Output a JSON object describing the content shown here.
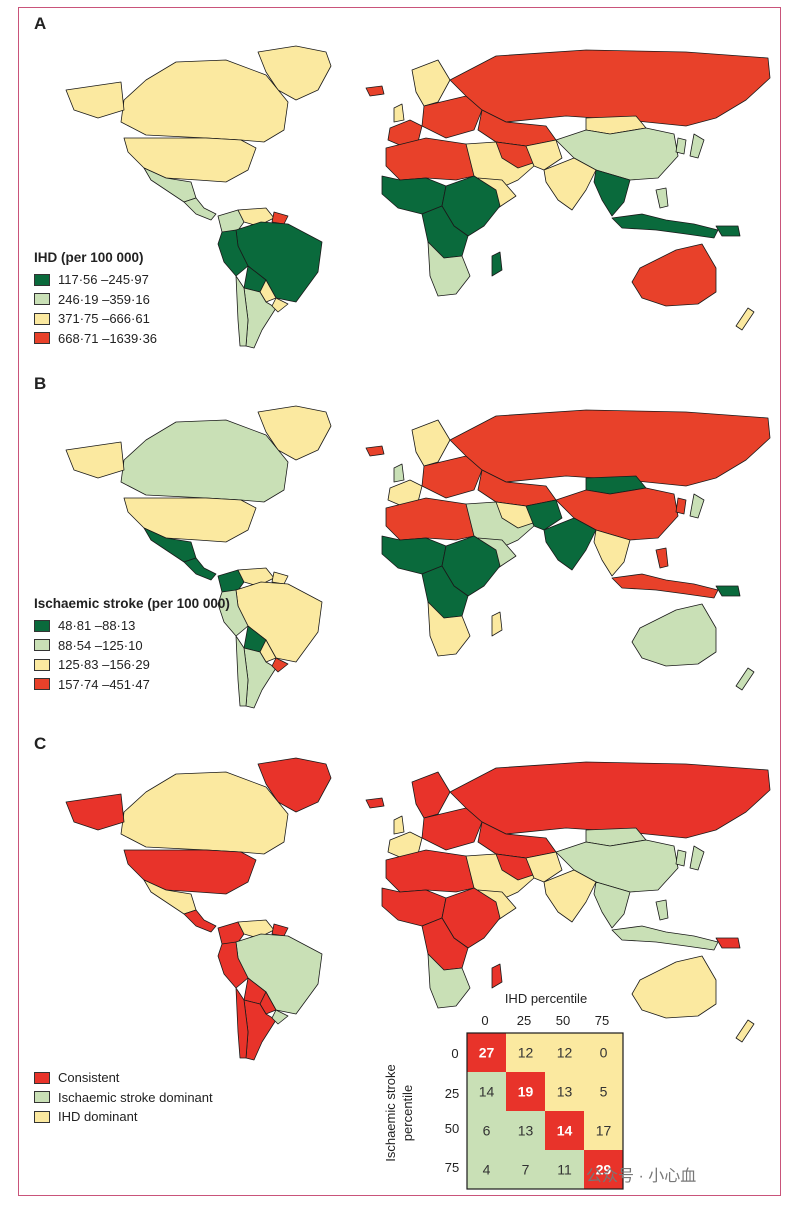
{
  "colors": {
    "dark_green": "#0a6a3c",
    "light_green": "#c9e0b6",
    "yellow": "#fbe9a0",
    "red": "#e8412a",
    "red_consistent": "#e8332a",
    "ocean": "#ffffff",
    "border": "#1a1a1a"
  },
  "panels": [
    {
      "letter": "A",
      "legend_title": "IHD (per 100 000)",
      "legend_items": [
        {
          "label": "117·56 –245·97",
          "color": "#0a6a3c"
        },
        {
          "label": "246·19 –359·16",
          "color": "#c9e0b6"
        },
        {
          "label": "371·75 –666·61",
          "color": "#fbe9a0"
        },
        {
          "label": "668·71 –1639·36",
          "color": "#e8412a"
        }
      ]
    },
    {
      "letter": "B",
      "legend_title": "Ischaemic stroke (per 100 000)",
      "legend_items": [
        {
          "label": "48·81 –88·13",
          "color": "#0a6a3c"
        },
        {
          "label": "88·54 –125·10",
          "color": "#c9e0b6"
        },
        {
          "label": "125·83 –156·29",
          "color": "#fbe9a0"
        },
        {
          "label": "157·74 –451·47",
          "color": "#e8412a"
        }
      ]
    },
    {
      "letter": "C",
      "legend_title": "",
      "legend_items": [
        {
          "label": "Consistent",
          "color": "#e8332a"
        },
        {
          "label": "Ischaemic stroke dominant",
          "color": "#c9e0b6"
        },
        {
          "label": "IHD dominant",
          "color": "#fbe9a0"
        }
      ]
    }
  ],
  "matrix": {
    "x_title": "IHD percentile",
    "y_title_line1": "Ischaemic stroke",
    "y_title_line2": "percentile",
    "col_labels": [
      "0",
      "25",
      "50",
      "75"
    ],
    "row_labels": [
      "0",
      "25",
      "50",
      "75"
    ],
    "cells": [
      [
        27,
        12,
        12,
        0
      ],
      [
        14,
        19,
        13,
        5
      ],
      [
        6,
        13,
        14,
        17
      ],
      [
        4,
        7,
        11,
        29
      ]
    ]
  },
  "watermark": "公众号 · 小心血"
}
